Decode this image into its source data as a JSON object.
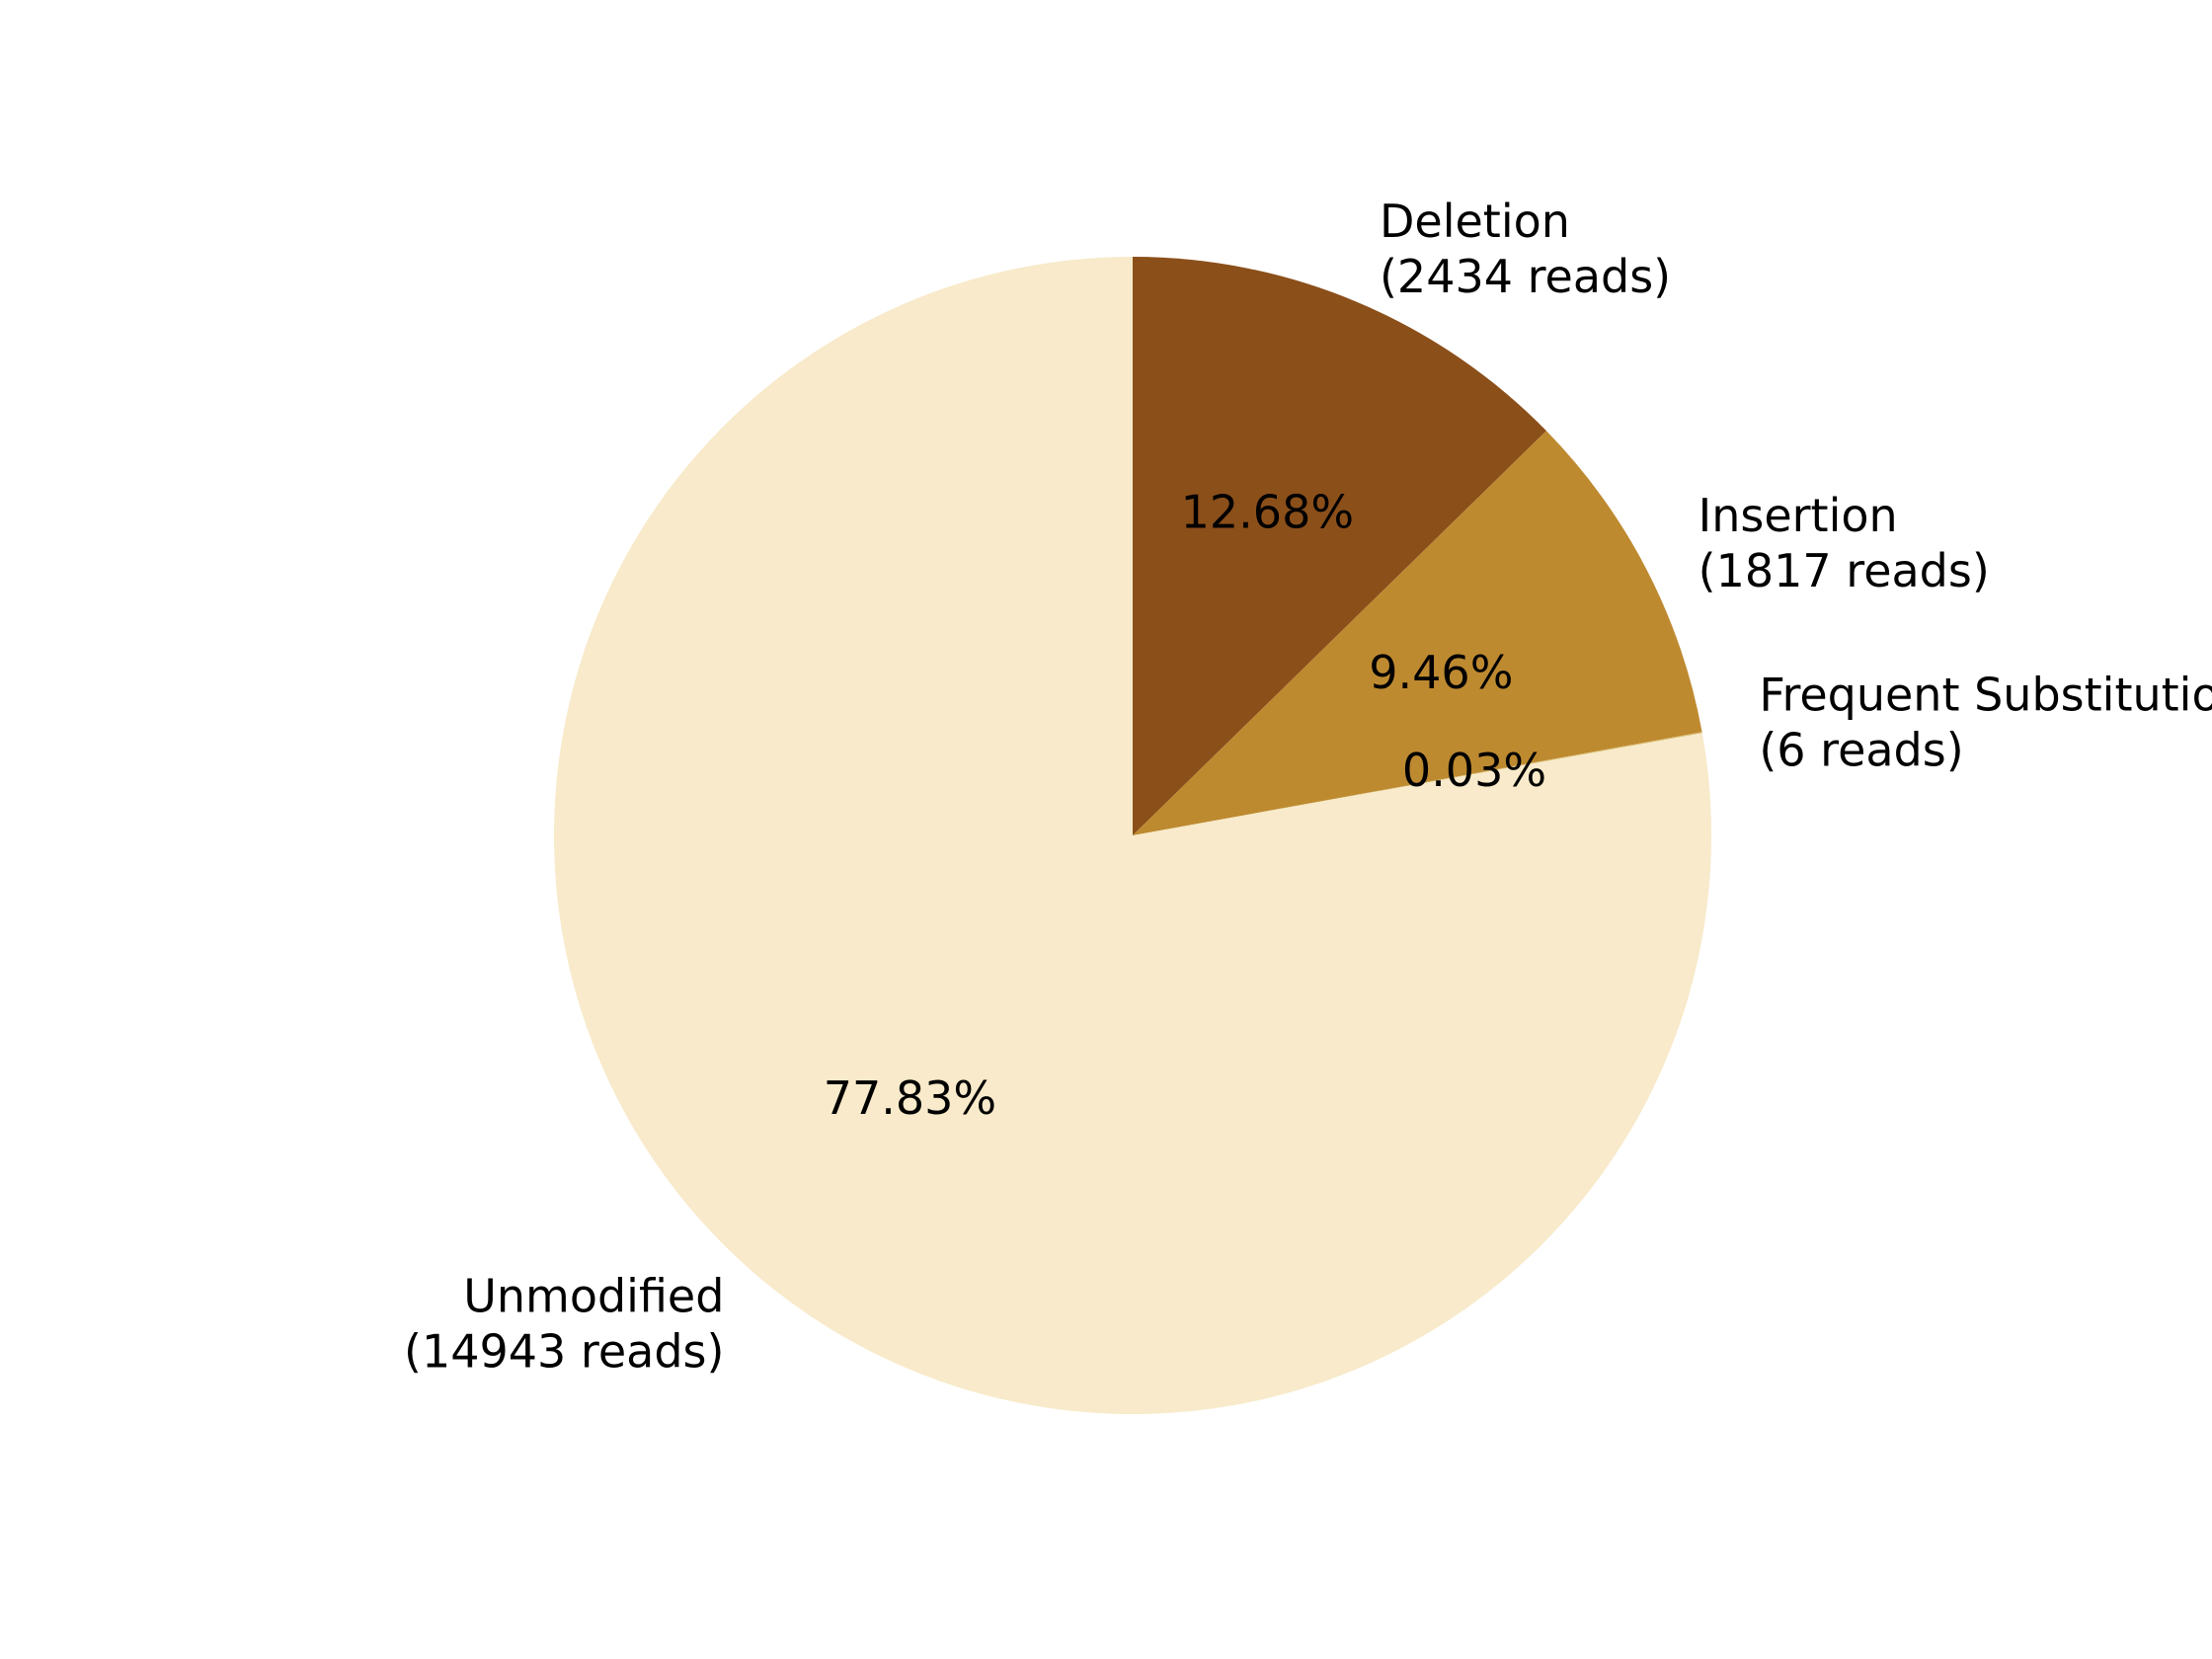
{
  "chart_data": {
    "type": "pie",
    "start_angle_deg": 90,
    "direction": "clockwise",
    "slices": [
      {
        "label": "Deletion",
        "reads_text": "(2434 reads)",
        "value": 2434,
        "percent_text": "12.68%",
        "color": "#8B4F1A"
      },
      {
        "label": "Insertion",
        "reads_text": "(1817 reads)",
        "value": 1817,
        "percent_text": "9.46%",
        "color": "#BE8A30"
      },
      {
        "label": "Frequent Substitution",
        "reads_text": "(6 reads)",
        "value": 6,
        "percent_text": "0.03%",
        "color": "#D9BC6E"
      },
      {
        "label": "Unmodified",
        "reads_text": "(14943 reads)",
        "value": 14943,
        "percent_text": "77.83%",
        "color": "#F8EACA"
      }
    ]
  }
}
